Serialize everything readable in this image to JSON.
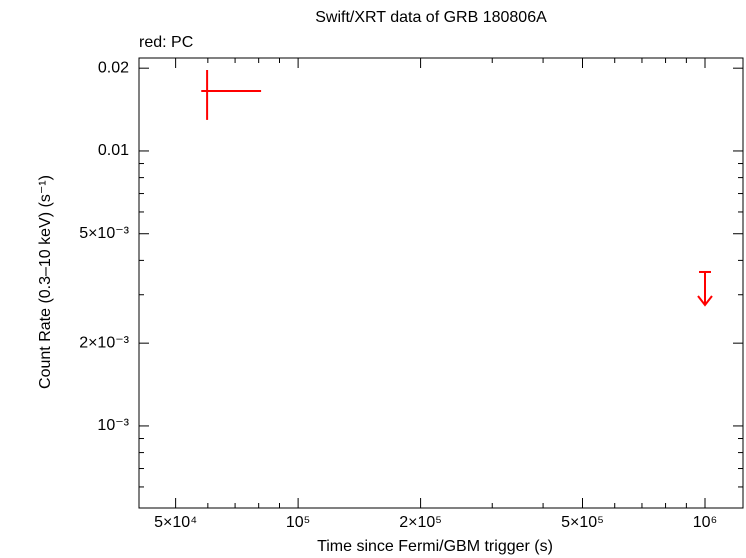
{
  "chart_data": {
    "type": "scatter",
    "title": "Swift/XRT data of GRB 180806A",
    "subtitle": "red: PC",
    "x_label": "Time since Fermi/GBM trigger (s)",
    "y_label": "Count Rate (0.3–10 keV) (s⁻¹)",
    "xlog": true,
    "ylog": true,
    "xlim": [
      40640,
      1240000
    ],
    "ylim": [
      0.000503,
      0.02178
    ],
    "xticks": [
      {
        "value": 50000,
        "label": "5×10⁴"
      },
      {
        "value": 100000,
        "label": "10⁵"
      },
      {
        "value": 200000,
        "label": "2×10⁵"
      },
      {
        "value": 500000,
        "label": "5×10⁵"
      },
      {
        "value": 1000000,
        "label": "10⁶"
      }
    ],
    "yticks": [
      {
        "value": 0.001,
        "label": "10⁻³"
      },
      {
        "value": 0.002,
        "label": "2×10⁻³"
      },
      {
        "value": 0.005,
        "label": "5×10⁻³"
      },
      0.01,
      0.02
    ],
    "xminorticks": [
      60000,
      70000,
      80000,
      90000,
      300000,
      400000,
      600000,
      700000,
      800000,
      900000
    ],
    "yminorticks": [
      0.0006,
      0.0007,
      0.0008,
      0.0009,
      0.003,
      0.004,
      0.006,
      0.007,
      0.008,
      0.009
    ],
    "color": "#ff0000",
    "points": {
      "x": [
        59750
      ],
      "x_low": [
        57800
      ],
      "x_high": [
        81100
      ],
      "y": [
        0.01652
      ],
      "y_low": [
        0.01297
      ],
      "y_high": [
        0.0197
      ]
    },
    "upper_limits": {
      "x": [
        1000000
      ],
      "y": [
        0.00363
      ]
    }
  }
}
